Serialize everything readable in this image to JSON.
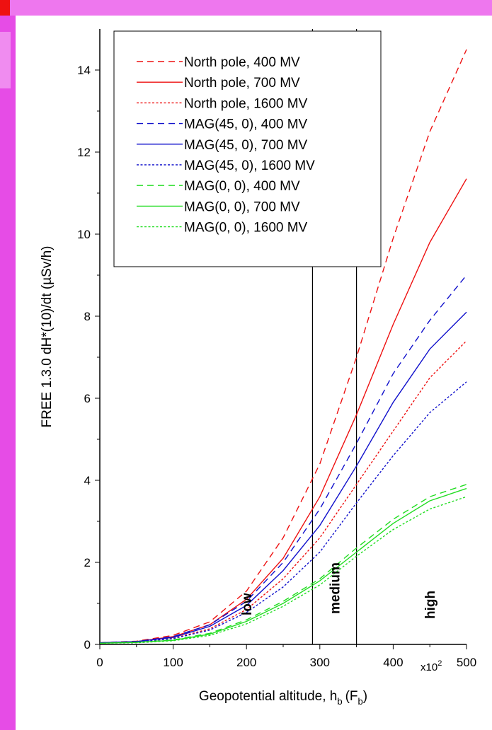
{
  "page": {
    "top_bar_color": "#ee77ee",
    "side_bar_color": "#e64ce6",
    "side_bar_inner_color": "#f08cf0",
    "corner_mark_color": "#ee1111"
  },
  "chart_data": {
    "type": "line",
    "xlabel": "Geopotential altitude, h",
    "xlabel_sub": "b",
    "xlabel_paren_open": "(F",
    "xlabel_paren_sub": "b",
    "xlabel_paren_close": ")",
    "ylabel": "FREE 1.3.0 dH*(10)/dt (µSv/h)",
    "x_multiplier": "x10",
    "x_multiplier_exp": "2",
    "xlim": [
      0,
      500
    ],
    "ylim": [
      0,
      15
    ],
    "xticks": [
      0,
      100,
      200,
      300,
      400,
      500
    ],
    "yticks": [
      0,
      2,
      4,
      6,
      8,
      10,
      12,
      14
    ],
    "vertical_lines": [
      290,
      350
    ],
    "region_labels": [
      {
        "text": "low",
        "x": 200
      },
      {
        "text": "medium",
        "x": 320
      },
      {
        "text": "high",
        "x": 450
      }
    ],
    "legend_position": "top-left",
    "x": [
      0,
      50,
      100,
      150,
      200,
      250,
      300,
      350,
      400,
      450,
      500
    ],
    "series": [
      {
        "name": "North pole, 400 MV",
        "color": "#ee1111",
        "dash": "dashed",
        "values": [
          0.04,
          0.08,
          0.22,
          0.55,
          1.3,
          2.6,
          4.4,
          7.0,
          9.9,
          12.5,
          14.5
        ]
      },
      {
        "name": "North pole, 700 MV",
        "color": "#ee1111",
        "dash": "solid",
        "values": [
          0.04,
          0.07,
          0.19,
          0.48,
          1.1,
          2.1,
          3.6,
          5.6,
          7.8,
          9.8,
          11.35
        ]
      },
      {
        "name": "North pole, 1600 MV",
        "color": "#ee1111",
        "dash": "dotted",
        "values": [
          0.03,
          0.06,
          0.15,
          0.38,
          0.85,
          1.6,
          2.6,
          3.9,
          5.2,
          6.5,
          7.4
        ]
      },
      {
        "name": "MAG(45, 0), 400 MV",
        "color": "#1111cc",
        "dash": "dashed",
        "values": [
          0.04,
          0.07,
          0.19,
          0.48,
          1.05,
          2.0,
          3.3,
          4.9,
          6.6,
          7.9,
          9.0
        ]
      },
      {
        "name": "MAG(45, 0), 700 MV",
        "color": "#1111cc",
        "dash": "solid",
        "values": [
          0.04,
          0.07,
          0.17,
          0.44,
          0.95,
          1.8,
          2.9,
          4.35,
          5.9,
          7.2,
          8.1
        ]
      },
      {
        "name": "MAG(45, 0), 1600 MV",
        "color": "#1111cc",
        "dash": "dotted",
        "values": [
          0.03,
          0.06,
          0.14,
          0.35,
          0.78,
          1.4,
          2.25,
          3.45,
          4.6,
          5.65,
          6.4
        ]
      },
      {
        "name": "MAG(0, 0), 400 MV",
        "color": "#22dd22",
        "dash": "dashed",
        "values": [
          0.03,
          0.05,
          0.11,
          0.27,
          0.6,
          1.05,
          1.6,
          2.35,
          3.05,
          3.6,
          3.9
        ]
      },
      {
        "name": "MAG(0, 0), 700 MV",
        "color": "#22dd22",
        "dash": "solid",
        "values": [
          0.03,
          0.05,
          0.1,
          0.25,
          0.56,
          1.0,
          1.55,
          2.25,
          2.95,
          3.5,
          3.8
        ]
      },
      {
        "name": "MAG(0, 0), 1600 MV",
        "color": "#22dd22",
        "dash": "dotted",
        "values": [
          0.03,
          0.04,
          0.09,
          0.22,
          0.5,
          0.93,
          1.45,
          2.15,
          2.8,
          3.3,
          3.6
        ]
      }
    ]
  }
}
